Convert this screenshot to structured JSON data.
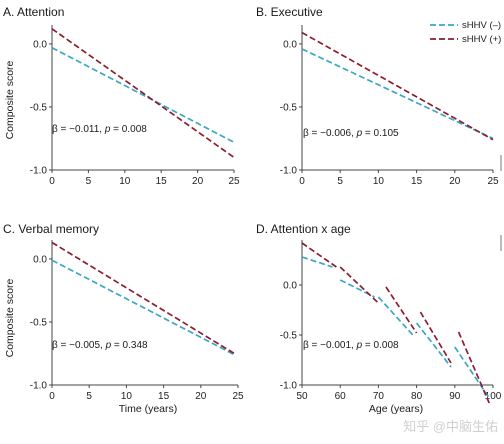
{
  "colors": {
    "minus": "#3aa7c4",
    "plus": "#8a1f2e",
    "axis": "#444444"
  },
  "legend": [
    {
      "label": "sHHV (–)",
      "series": "minus"
    },
    {
      "label": "sHHV (+)",
      "series": "plus"
    }
  ],
  "watermark": "知乎 @中脑生佑",
  "chart_data": [
    {
      "type": "line",
      "title": "A. Attention",
      "xlabel": "",
      "ylabel": "Composite score",
      "xlim": [
        0,
        25
      ],
      "ylim": [
        -1.0,
        0.15
      ],
      "xticks": [
        "0",
        "5",
        "10",
        "15",
        "20",
        "25"
      ],
      "yticks": [
        "0.0",
        "-0.5",
        "-1.0"
      ],
      "annotation": {
        "pre": "β = −0.011, ",
        "p": "p",
        "post": " = 0.008"
      },
      "series": [
        {
          "key": "minus",
          "segments": [
            [
              [
                0,
                -0.03
              ],
              [
                25,
                -0.78
              ]
            ]
          ]
        },
        {
          "key": "plus",
          "segments": [
            [
              [
                0,
                0.12
              ],
              [
                25,
                -0.9
              ]
            ]
          ]
        }
      ]
    },
    {
      "type": "line",
      "title": "B. Executive",
      "xlabel": "",
      "ylabel": "",
      "xlim": [
        0,
        25
      ],
      "ylim": [
        -1.0,
        0.15
      ],
      "xticks": [
        "0",
        "5",
        "10",
        "15",
        "20",
        "25"
      ],
      "yticks": [
        "0.0",
        "-0.5",
        "-1.0"
      ],
      "annotation": {
        "pre": "β = −0.006, ",
        "p": "p",
        "post": " = 0.105"
      },
      "series": [
        {
          "key": "minus",
          "segments": [
            [
              [
                0,
                -0.04
              ],
              [
                25,
                -0.75
              ]
            ]
          ]
        },
        {
          "key": "plus",
          "segments": [
            [
              [
                0,
                0.09
              ],
              [
                25,
                -0.76
              ]
            ]
          ]
        }
      ]
    },
    {
      "type": "line",
      "title": "C. Verbal memory",
      "xlabel": "Time (years)",
      "ylabel": "Composite score",
      "xlim": [
        0,
        25
      ],
      "ylim": [
        -1.0,
        0.15
      ],
      "xticks": [
        "0",
        "5",
        "10",
        "15",
        "20",
        "25"
      ],
      "yticks": [
        "0.0",
        "-0.5",
        "-1.0"
      ],
      "annotation": {
        "pre": "β = −0.005, ",
        "p": "p",
        "post": " = 0.348"
      },
      "series": [
        {
          "key": "minus",
          "segments": [
            [
              [
                0,
                -0.01
              ],
              [
                24.5,
                -0.76
              ]
            ]
          ]
        },
        {
          "key": "plus",
          "segments": [
            [
              [
                0,
                0.13
              ],
              [
                24.5,
                -0.75
              ]
            ]
          ]
        }
      ]
    },
    {
      "type": "line",
      "title": "D. Attention x age",
      "xlabel": "Age (years)",
      "ylabel": "",
      "xlim": [
        50,
        100
      ],
      "ylim": [
        -1.0,
        0.45
      ],
      "xticks": [
        "50",
        "60",
        "70",
        "80",
        "90",
        "100"
      ],
      "yticks": [
        "0.0",
        "-0.5",
        "-1.0"
      ],
      "annotation": {
        "pre": "β = −0.001, ",
        "p": "p",
        "post": " = 0.008"
      },
      "series": [
        {
          "key": "minus",
          "segments": [
            [
              [
                50,
                0.28
              ],
              [
                58,
                0.18
              ]
            ],
            [
              [
                60,
                0.05
              ],
              [
                69,
                -0.12
              ]
            ],
            [
              [
                70,
                -0.12
              ],
              [
                79,
                -0.5
              ]
            ],
            [
              [
                80,
                -0.38
              ],
              [
                89,
                -0.82
              ]
            ],
            [
              [
                90,
                -0.62
              ],
              [
                99,
                -1.13
              ]
            ]
          ]
        },
        {
          "key": "plus",
          "segments": [
            [
              [
                50,
                0.42
              ],
              [
                59,
                0.18
              ]
            ],
            [
              [
                60,
                0.18
              ],
              [
                70,
                -0.18
              ]
            ],
            [
              [
                72,
                -0.02
              ],
              [
                80,
                -0.48
              ]
            ],
            [
              [
                81,
                -0.27
              ],
              [
                89,
                -0.78
              ]
            ],
            [
              [
                91,
                -0.47
              ],
              [
                99,
                -1.18
              ]
            ]
          ]
        }
      ]
    }
  ]
}
